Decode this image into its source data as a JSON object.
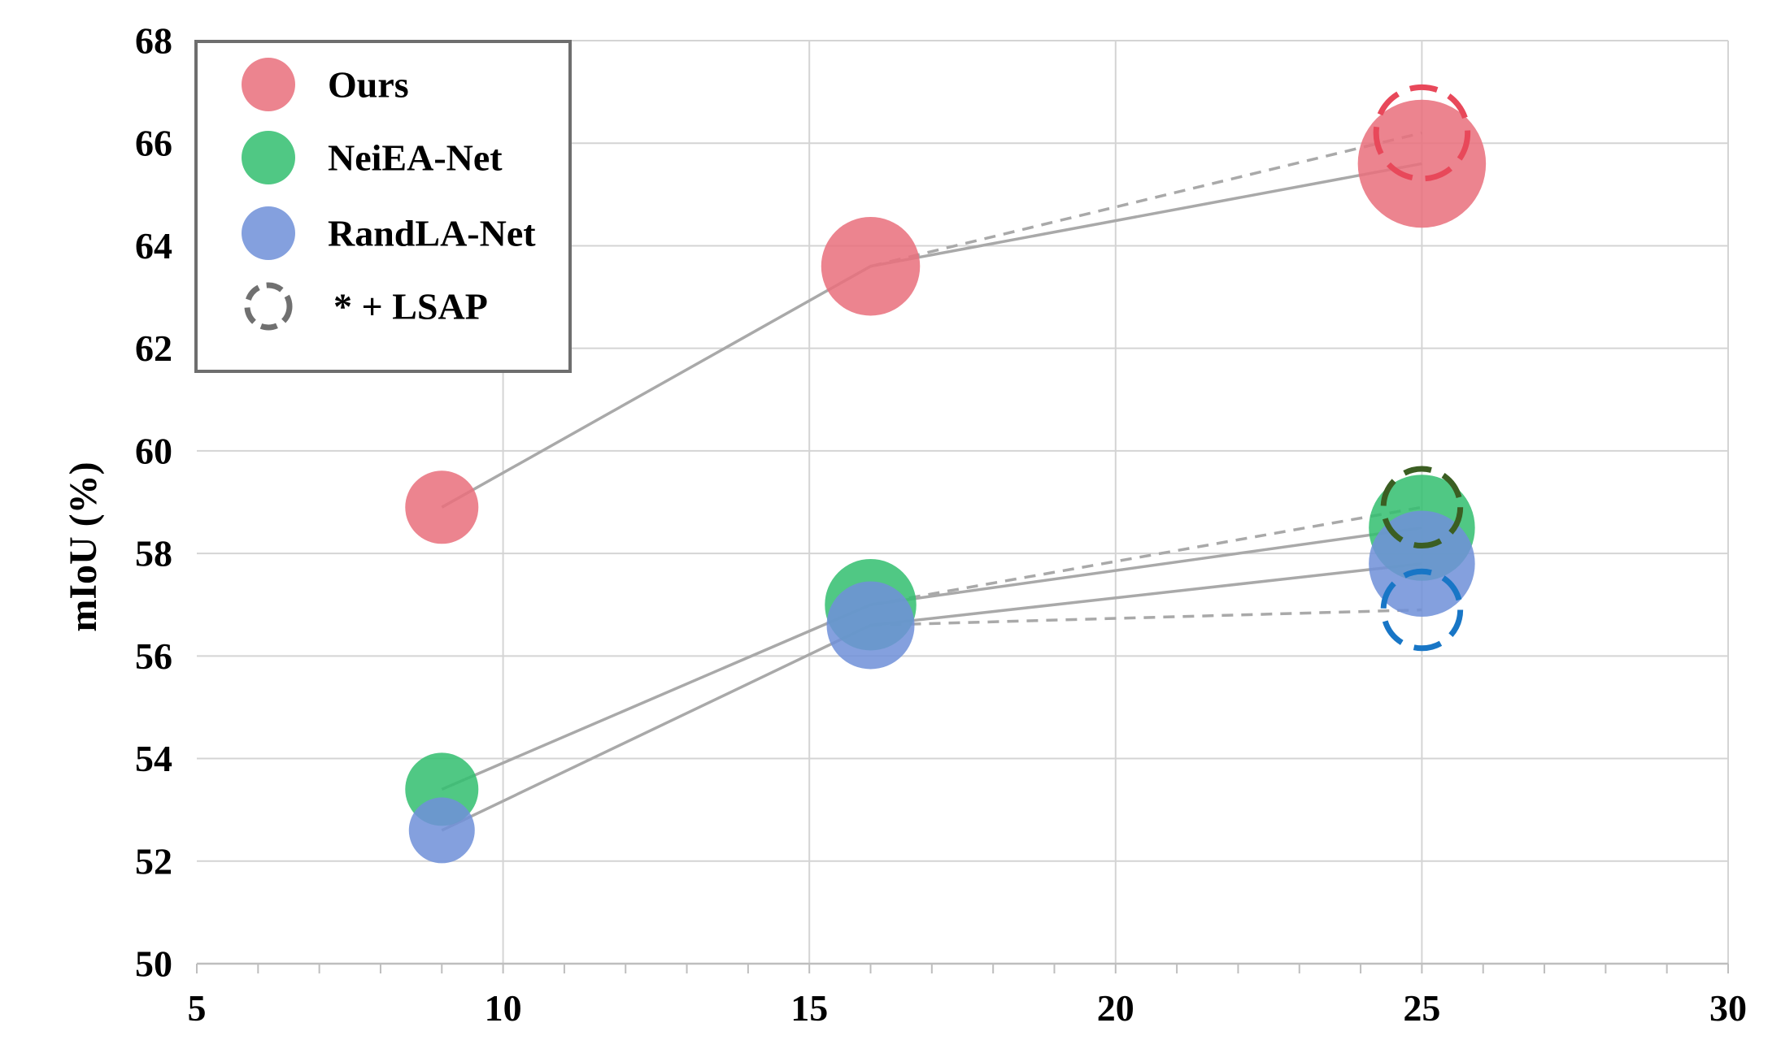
{
  "chart_data": {
    "type": "scatter",
    "title": "",
    "xlabel": "",
    "ylabel": "mIoU (%)",
    "xlim": [
      5,
      30
    ],
    "ylim": [
      50,
      68
    ],
    "xticks": [
      5,
      10,
      15,
      20,
      25,
      30
    ],
    "yticks": [
      50,
      52,
      54,
      56,
      58,
      60,
      62,
      64,
      66,
      68
    ],
    "x_minor_step": 1,
    "grid": true,
    "legend_position": "top-left",
    "series": [
      {
        "name": "Ours",
        "color": "#E9707D",
        "x": [
          9,
          16,
          25
        ],
        "y": [
          58.9,
          63.6,
          65.6
        ],
        "bubble_size": [
          1.0,
          1.35,
          1.75
        ],
        "lsap": {
          "x": 25,
          "y": 66.2,
          "bubble_size": 1.25,
          "stroke": "#E8485A"
        }
      },
      {
        "name": "NeiEA-Net",
        "color": "#33BF70",
        "x": [
          9,
          16,
          25
        ],
        "y": [
          53.4,
          57.0,
          58.5
        ],
        "bubble_size": [
          1.0,
          1.25,
          1.45
        ],
        "lsap": {
          "x": 25,
          "y": 58.9,
          "bubble_size": 1.05,
          "stroke": "#3B5E22"
        }
      },
      {
        "name": "RandLA-Net",
        "color": "#7090D8",
        "x": [
          9,
          16,
          25
        ],
        "y": [
          52.6,
          56.6,
          57.8
        ],
        "bubble_size": [
          0.9,
          1.2,
          1.45
        ],
        "lsap": {
          "x": 25,
          "y": 56.9,
          "bubble_size": 1.05,
          "stroke": "#1876C6"
        }
      }
    ],
    "legend": [
      {
        "label": "Ours",
        "color": "#E9707D",
        "style": "filled"
      },
      {
        "label": "NeiEA-Net",
        "color": "#33BF70",
        "style": "filled"
      },
      {
        "label": "RandLA-Net",
        "color": "#7090D8",
        "style": "filled"
      },
      {
        "label": "* + LSAP",
        "color": "#707070",
        "style": "dashed"
      }
    ]
  }
}
